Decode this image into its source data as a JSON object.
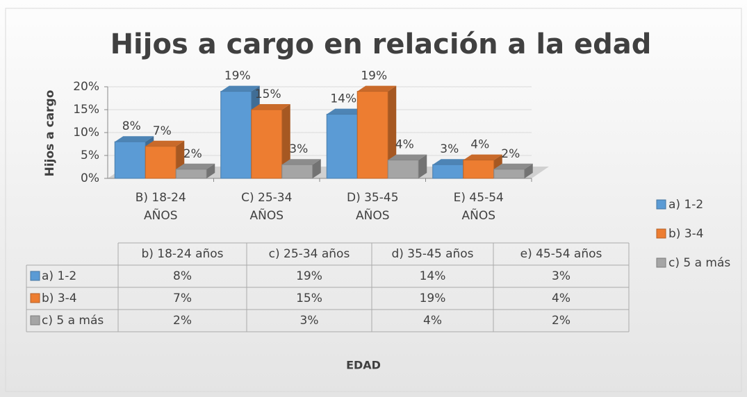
{
  "chart_data": {
    "type": "bar3d",
    "title": "Hijos a cargo en relación a la edad",
    "y_axis_label": "Hijos a cargo",
    "x_axis_label": "EDAD",
    "categories": [
      "B) 18-24 AÑOS",
      "C) 25-34 AÑOS",
      "D) 35-45 AÑOS",
      "E) 45-54 AÑOS"
    ],
    "table_categories": [
      "b) 18-24 años",
      "c) 25-34 años",
      "d) 35-45 años",
      "e) 45-54 años"
    ],
    "series": [
      {
        "name": "a) 1-2",
        "color": "#5b9bd5",
        "values": [
          8,
          19,
          14,
          3
        ],
        "value_labels": [
          "8%",
          "19%",
          "14%",
          "3%"
        ]
      },
      {
        "name": "b) 3-4",
        "color": "#ed7d31",
        "values": [
          7,
          15,
          19,
          4
        ],
        "value_labels": [
          "7%",
          "15%",
          "19%",
          "4%"
        ]
      },
      {
        "name": "c) 5 a más",
        "color": "#a5a5a5",
        "values": [
          2,
          3,
          4,
          2
        ],
        "value_labels": [
          "2%",
          "3%",
          "4%",
          "2%"
        ]
      }
    ],
    "ylim": [
      0,
      20
    ],
    "yticks": [
      {
        "value": 0,
        "label": "0%"
      },
      {
        "value": 5,
        "label": "5%"
      },
      {
        "value": 10,
        "label": "10%"
      },
      {
        "value": 15,
        "label": "15%"
      },
      {
        "value": 20,
        "label": "20%"
      }
    ],
    "grid": true,
    "legend": "right",
    "data_table": true
  }
}
